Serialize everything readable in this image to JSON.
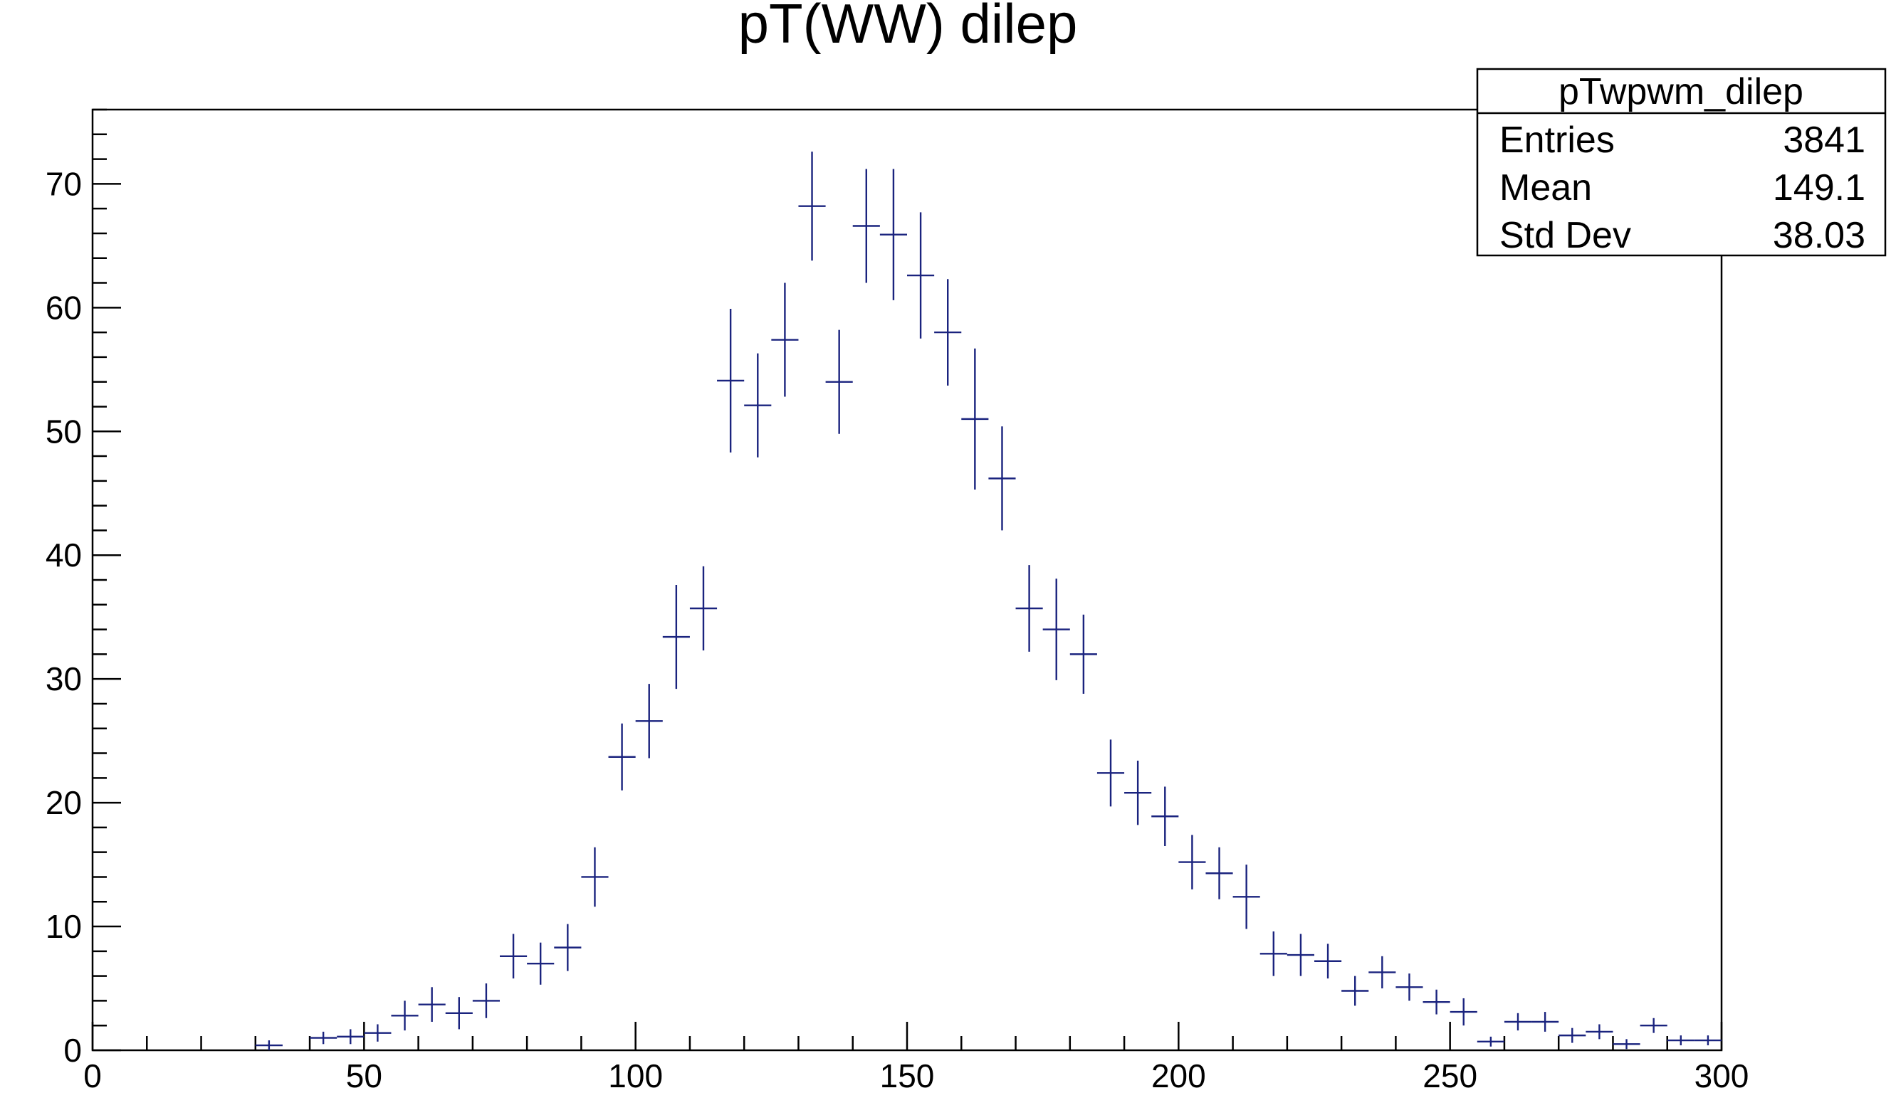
{
  "chart_data": {
    "type": "histogram",
    "title": "pT(WW) dilep",
    "xlabel": "",
    "ylabel": "",
    "xlim": [
      0,
      300
    ],
    "ylim": [
      0,
      76
    ],
    "x_ticks": [
      0,
      50,
      100,
      150,
      200,
      250,
      300
    ],
    "y_ticks": [
      0,
      10,
      20,
      30,
      40,
      50,
      60,
      70
    ],
    "grid": false,
    "bin_width": 5,
    "color": "#1a237e",
    "stats_box": {
      "name": "pTwpwm_dilep",
      "rows": [
        {
          "label": "Entries",
          "value": "3841"
        },
        {
          "label": "Mean",
          "value": "149.1"
        },
        {
          "label": "Std Dev",
          "value": "38.03"
        }
      ]
    },
    "series": [
      {
        "x": [
          32.5,
          37.5,
          42.5,
          47.5,
          52.5,
          57.5,
          62.5,
          67.5,
          72.5,
          77.5,
          82.5,
          87.5,
          92.5,
          97.5,
          102.5,
          107.5,
          112.5,
          117.5,
          122.5,
          127.5,
          132.5,
          137.5,
          142.5,
          147.5,
          152.5,
          157.5,
          162.5,
          167.5,
          172.5,
          177.5,
          182.5,
          187.5,
          192.5,
          197.5,
          202.5,
          207.5,
          212.5,
          217.5,
          222.5,
          227.5,
          232.5,
          237.5,
          242.5,
          247.5,
          252.5,
          257.5,
          262.5,
          267.5,
          272.5,
          277.5,
          282.5,
          287.5,
          292.5,
          297.5
        ],
        "values": [
          0.4,
          0,
          1.0,
          1.1,
          1.4,
          2.8,
          3.7,
          3.0,
          4.0,
          7.6,
          7.0,
          8.3,
          14.0,
          23.7,
          26.6,
          33.4,
          35.7,
          54.1,
          52.1,
          57.4,
          68.2,
          54.0,
          66.6,
          65.9,
          62.6,
          58.0,
          51.0,
          46.2,
          35.7,
          34.0,
          32.0,
          22.4,
          20.8,
          18.9,
          15.2,
          14.3,
          12.4,
          7.8,
          7.7,
          7.2,
          4.8,
          6.3,
          5.1,
          3.9,
          3.1,
          0.7,
          2.3,
          2.3,
          1.2,
          1.5,
          0.5,
          2.0,
          0.8,
          0.8
        ],
        "errors": [
          0.4,
          0,
          0.5,
          0.6,
          0.7,
          1.2,
          1.4,
          1.3,
          1.4,
          1.8,
          1.7,
          1.9,
          2.4,
          2.7,
          3.0,
          4.2,
          3.4,
          5.8,
          4.2,
          4.6,
          4.4,
          4.2,
          4.6,
          5.3,
          5.1,
          4.3,
          5.7,
          4.2,
          3.5,
          4.1,
          3.2,
          2.7,
          2.6,
          2.4,
          2.2,
          2.1,
          2.6,
          1.8,
          1.7,
          1.4,
          1.2,
          1.3,
          1.1,
          1.0,
          1.1,
          0.4,
          0.7,
          0.8,
          0.6,
          0.6,
          0.4,
          0.6,
          0.4,
          0.4
        ]
      }
    ]
  }
}
